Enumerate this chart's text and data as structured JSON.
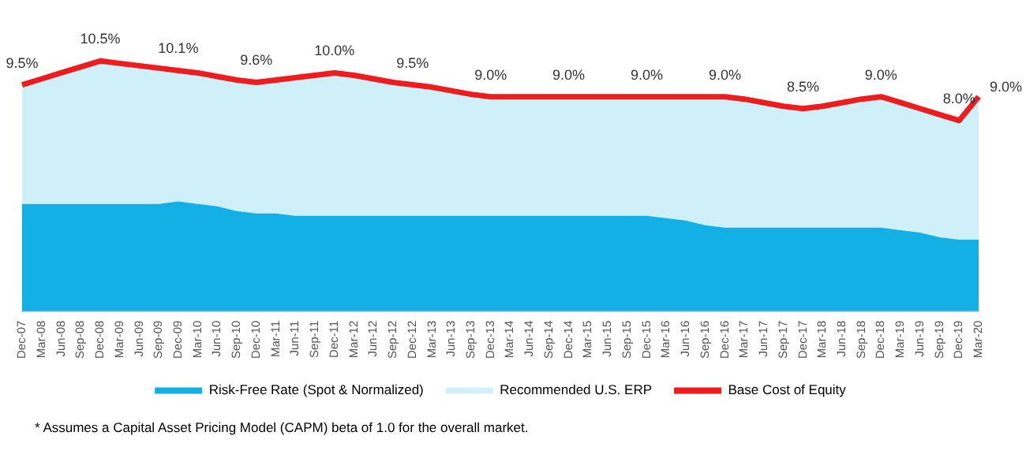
{
  "chart_data": {
    "type": "area",
    "stacked": true,
    "legend": "bottom",
    "grid": false,
    "tick_labels": "x",
    "categories": [
      "Dec-07",
      "Mar-08",
      "Jun-08",
      "Sep-08",
      "Dec-08",
      "Mar-09",
      "Jun-09",
      "Sep-09",
      "Dec-09",
      "Mar-10",
      "Jun-10",
      "Sep-10",
      "Dec-10",
      "Mar-11",
      "Jun-11",
      "Sep-11",
      "Dec-11",
      "Mar-12",
      "Jun-12",
      "Sep-12",
      "Dec-12",
      "Mar-13",
      "Jun-13",
      "Sep-13",
      "Dec-13",
      "Mar-14",
      "Jun-14",
      "Sep-14",
      "Dec-14",
      "Mar-15",
      "Jun-15",
      "Sep-15",
      "Dec-15",
      "Mar-16",
      "Jun-16",
      "Sep-16",
      "Dec-16",
      "Mar-17",
      "Jun-17",
      "Sep-17",
      "Dec-17",
      "Mar-18",
      "Jun-18",
      "Sep-18",
      "Dec-18",
      "Mar-19",
      "Jun-19",
      "Sep-19",
      "Dec-19",
      "Mar-20"
    ],
    "series": [
      {
        "name": "Risk-Free Rate (Spot & Normalized)",
        "color": "#13b0e6",
        "values": [
          4.5,
          4.5,
          4.5,
          4.5,
          4.5,
          4.5,
          4.5,
          4.5,
          4.6,
          4.5,
          4.4,
          4.2,
          4.1,
          4.1,
          4.0,
          4.0,
          4.0,
          4.0,
          4.0,
          4.0,
          4.0,
          4.0,
          4.0,
          4.0,
          4.0,
          4.0,
          4.0,
          4.0,
          4.0,
          4.0,
          4.0,
          4.0,
          4.0,
          3.9,
          3.8,
          3.6,
          3.5,
          3.5,
          3.5,
          3.5,
          3.5,
          3.5,
          3.5,
          3.5,
          3.5,
          3.4,
          3.3,
          3.1,
          3.0,
          3.0
        ]
      },
      {
        "name": "Recommended U.S. ERP",
        "color": "#d0f0f9",
        "values": [
          5.0,
          5.25,
          5.5,
          5.75,
          6.0,
          5.9,
          5.8,
          5.7,
          5.5,
          5.5,
          5.45,
          5.5,
          5.5,
          5.6,
          5.8,
          5.9,
          6.0,
          5.9,
          5.75,
          5.6,
          5.5,
          5.4,
          5.25,
          5.1,
          5.0,
          5.0,
          5.0,
          5.0,
          5.0,
          5.0,
          5.0,
          5.0,
          5.0,
          5.1,
          5.2,
          5.4,
          5.5,
          5.4,
          5.25,
          5.1,
          5.0,
          5.1,
          5.25,
          5.4,
          5.5,
          5.35,
          5.2,
          5.15,
          5.0,
          6.0
        ]
      },
      {
        "name": "Base Cost of Equity",
        "type": "line",
        "color": "#ee1c1c",
        "values": [
          9.5,
          9.75,
          10.0,
          10.25,
          10.5,
          10.4,
          10.3,
          10.2,
          10.1,
          10.0,
          9.85,
          9.7,
          9.6,
          9.7,
          9.8,
          9.9,
          10.0,
          9.9,
          9.75,
          9.6,
          9.5,
          9.4,
          9.25,
          9.1,
          9.0,
          9.0,
          9.0,
          9.0,
          9.0,
          9.0,
          9.0,
          9.0,
          9.0,
          9.0,
          9.0,
          9.0,
          9.0,
          8.9,
          8.75,
          8.6,
          8.5,
          8.6,
          8.75,
          8.9,
          9.0,
          8.75,
          8.5,
          8.25,
          8.0,
          9.0
        ],
        "value_labels": [
          "9.5%",
          null,
          null,
          null,
          "10.5%",
          null,
          null,
          null,
          "10.1%",
          null,
          null,
          null,
          "9.6%",
          null,
          null,
          null,
          "10.0%",
          null,
          null,
          null,
          "9.5%",
          null,
          null,
          null,
          "9.0%",
          null,
          null,
          null,
          "9.0%",
          null,
          null,
          null,
          "9.0%",
          null,
          null,
          null,
          "9.0%",
          null,
          null,
          null,
          "8.5%",
          null,
          null,
          null,
          "9.0%",
          null,
          null,
          null,
          "8.0%",
          "9.0%"
        ]
      }
    ],
    "annotations": [
      "* Assumes a Capital Asset Pricing Model (CAPM) beta of 1.0 for the overall market."
    ]
  }
}
